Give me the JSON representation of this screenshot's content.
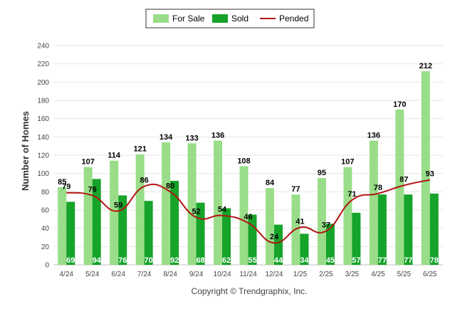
{
  "chart_data": {
    "type": "bar",
    "ylabel": "Number of Homes",
    "ylim": [
      0,
      240
    ],
    "yticks": [
      0,
      20,
      40,
      60,
      80,
      100,
      120,
      140,
      160,
      180,
      200,
      220,
      240
    ],
    "grid": true,
    "legend_position": "top-center",
    "categories": [
      "4/24",
      "5/24",
      "6/24",
      "7/24",
      "8/24",
      "9/24",
      "10/24",
      "11/24",
      "12/24",
      "1/25",
      "2/25",
      "3/25",
      "4/25",
      "5/25",
      "6/25"
    ],
    "series": [
      {
        "name": "For Sale",
        "type": "bar",
        "color": "#99dd88",
        "values": [
          85,
          107,
          114,
          121,
          134,
          133,
          136,
          108,
          84,
          77,
          95,
          107,
          136,
          170,
          212
        ]
      },
      {
        "name": "Sold",
        "type": "bar",
        "color": "#15a32a",
        "values": [
          69,
          94,
          76,
          70,
          92,
          68,
          62,
          55,
          44,
          34,
          45,
          57,
          77,
          77,
          78
        ]
      },
      {
        "name": "Pended",
        "type": "line",
        "color": "#b31414",
        "values": [
          79,
          76,
          59,
          86,
          80,
          52,
          54,
          46,
          24,
          41,
          37,
          71,
          78,
          87,
          93
        ]
      }
    ]
  },
  "copyright": "Copyright © Trendgraphix, Inc."
}
